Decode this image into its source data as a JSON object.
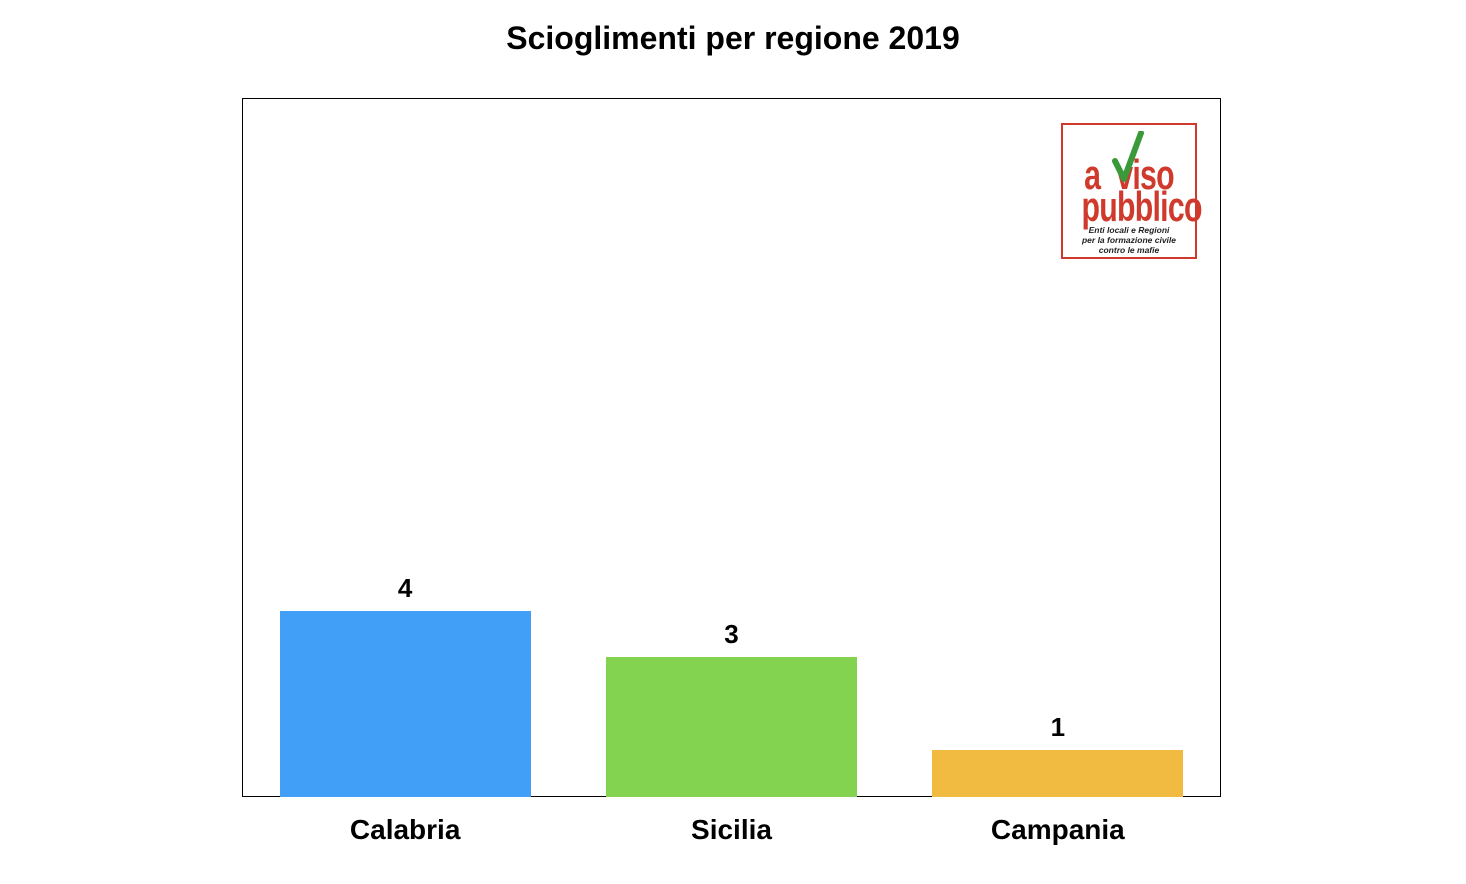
{
  "chart_data": {
    "type": "bar",
    "title": "Scioglimenti per regione 2019",
    "categories": [
      "Calabria",
      "Sicilia",
      "Campania"
    ],
    "values": [
      4,
      3,
      1
    ],
    "colors": [
      "#419ff7",
      "#83d351",
      "#f0bb40"
    ],
    "data_labels": [
      "4",
      "3",
      "1"
    ],
    "ylim": [
      0,
      15
    ],
    "grid": false,
    "legend": "none",
    "xlabel": "",
    "ylabel": ""
  },
  "logo": {
    "line1": "avviso",
    "line2": "pubblico",
    "sub1": "Enti locali e Regioni",
    "sub2": "per la formazione civile",
    "sub3": "contro le mafie",
    "color": "#d03a2c",
    "check_color": "#3a9a3a"
  }
}
